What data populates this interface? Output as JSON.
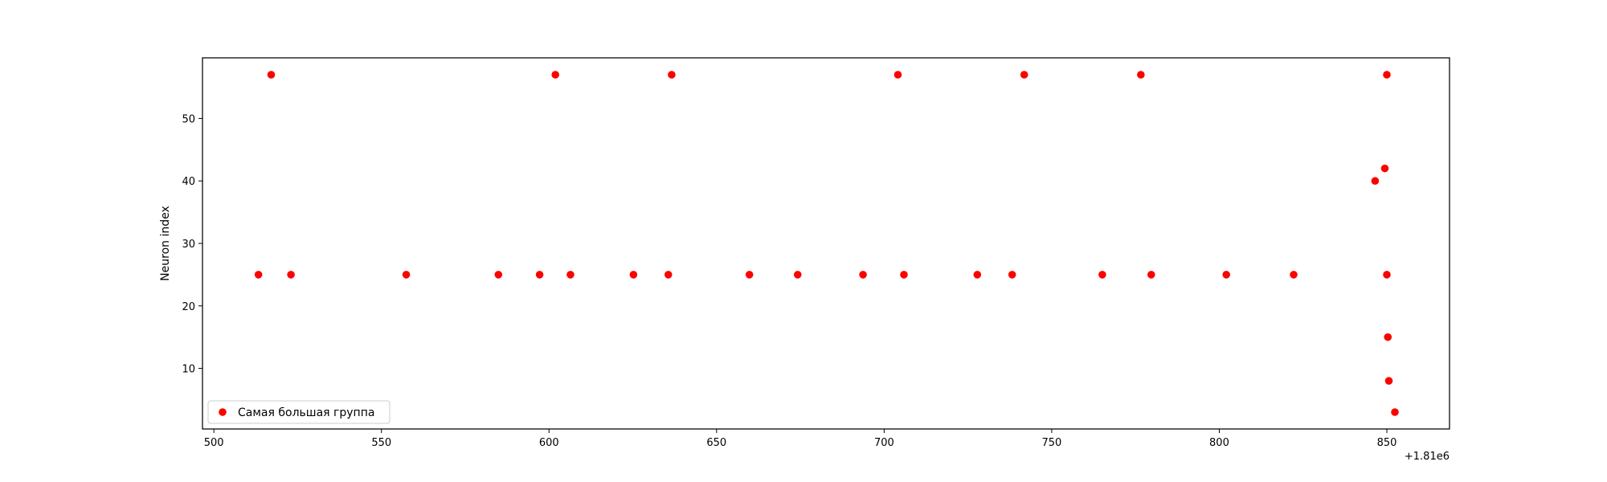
{
  "chart_data": {
    "type": "scatter",
    "title": "",
    "xlabel": "",
    "ylabel": "Neuron index",
    "x_offset_label": "+1.81e6",
    "xlim": [
      496.6,
      868.7
    ],
    "ylim": [
      0.3,
      59.7
    ],
    "xticks": [
      500,
      550,
      600,
      650,
      700,
      750,
      800,
      850
    ],
    "yticks": [
      10,
      20,
      30,
      40,
      50
    ],
    "grid": false,
    "legend_position": "lower-left",
    "marker_color": "#ff0000",
    "series": [
      {
        "name": "Самая большая группа",
        "points": [
          {
            "x": 513.3,
            "y": 25
          },
          {
            "x": 517.1,
            "y": 57
          },
          {
            "x": 523.0,
            "y": 25
          },
          {
            "x": 557.4,
            "y": 25
          },
          {
            "x": 584.9,
            "y": 25
          },
          {
            "x": 597.2,
            "y": 25
          },
          {
            "x": 601.9,
            "y": 57
          },
          {
            "x": 606.4,
            "y": 25
          },
          {
            "x": 625.2,
            "y": 25
          },
          {
            "x": 635.6,
            "y": 25
          },
          {
            "x": 636.6,
            "y": 57
          },
          {
            "x": 659.8,
            "y": 25
          },
          {
            "x": 674.2,
            "y": 25
          },
          {
            "x": 693.7,
            "y": 25
          },
          {
            "x": 704.1,
            "y": 57
          },
          {
            "x": 705.9,
            "y": 25
          },
          {
            "x": 727.8,
            "y": 25
          },
          {
            "x": 738.2,
            "y": 25
          },
          {
            "x": 741.8,
            "y": 57
          },
          {
            "x": 765.1,
            "y": 25
          },
          {
            "x": 776.6,
            "y": 57
          },
          {
            "x": 779.7,
            "y": 25
          },
          {
            "x": 802.1,
            "y": 25
          },
          {
            "x": 822.2,
            "y": 25
          },
          {
            "x": 846.5,
            "y": 40
          },
          {
            "x": 849.4,
            "y": 42
          },
          {
            "x": 850.0,
            "y": 57
          },
          {
            "x": 850.0,
            "y": 25
          },
          {
            "x": 850.3,
            "y": 15
          },
          {
            "x": 850.6,
            "y": 8
          },
          {
            "x": 852.4,
            "y": 3
          }
        ]
      }
    ]
  }
}
